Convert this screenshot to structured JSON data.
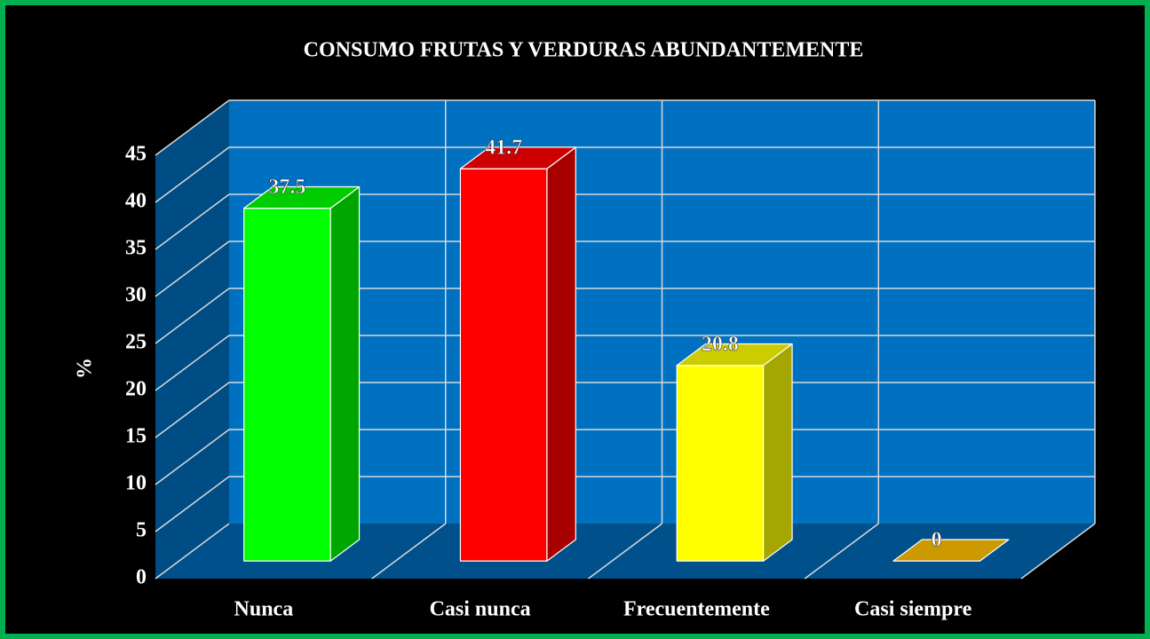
{
  "chart_data": {
    "type": "bar3d",
    "title": "CONSUMO FRUTAS Y VERDURAS ABUNDANTEMENTE",
    "y_label": "%",
    "categories": [
      "Nunca",
      "Casi nunca",
      "Frecuentemente",
      "Casi siempre"
    ],
    "values": [
      37.5,
      41.7,
      20.8,
      0
    ],
    "colors": [
      "#00ff00",
      "#ff0000",
      "#ffff00",
      "#ffc000"
    ],
    "ylim": [
      0,
      45
    ],
    "yticks": [
      0,
      5,
      10,
      15,
      20,
      25,
      30,
      35,
      40,
      45
    ],
    "grid": true
  }
}
